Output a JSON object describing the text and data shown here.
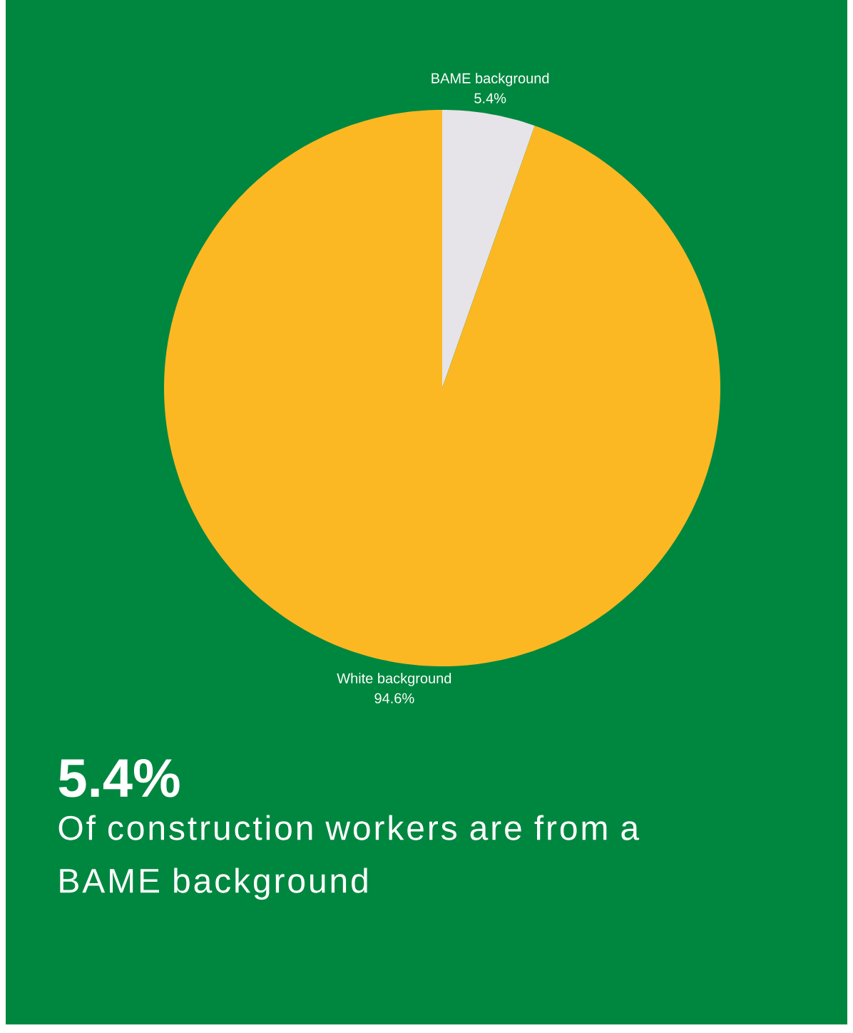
{
  "chart_data": {
    "type": "pie",
    "categories": [
      "BAME background",
      "White background"
    ],
    "values": [
      5.4,
      94.6
    ],
    "colors": [
      "#e6e4e8",
      "#fcb823"
    ],
    "value_labels": [
      "5.4%",
      "94.6%"
    ],
    "annotations": [
      "5.4%",
      "Of construction workers are from a BAME background"
    ]
  }
}
